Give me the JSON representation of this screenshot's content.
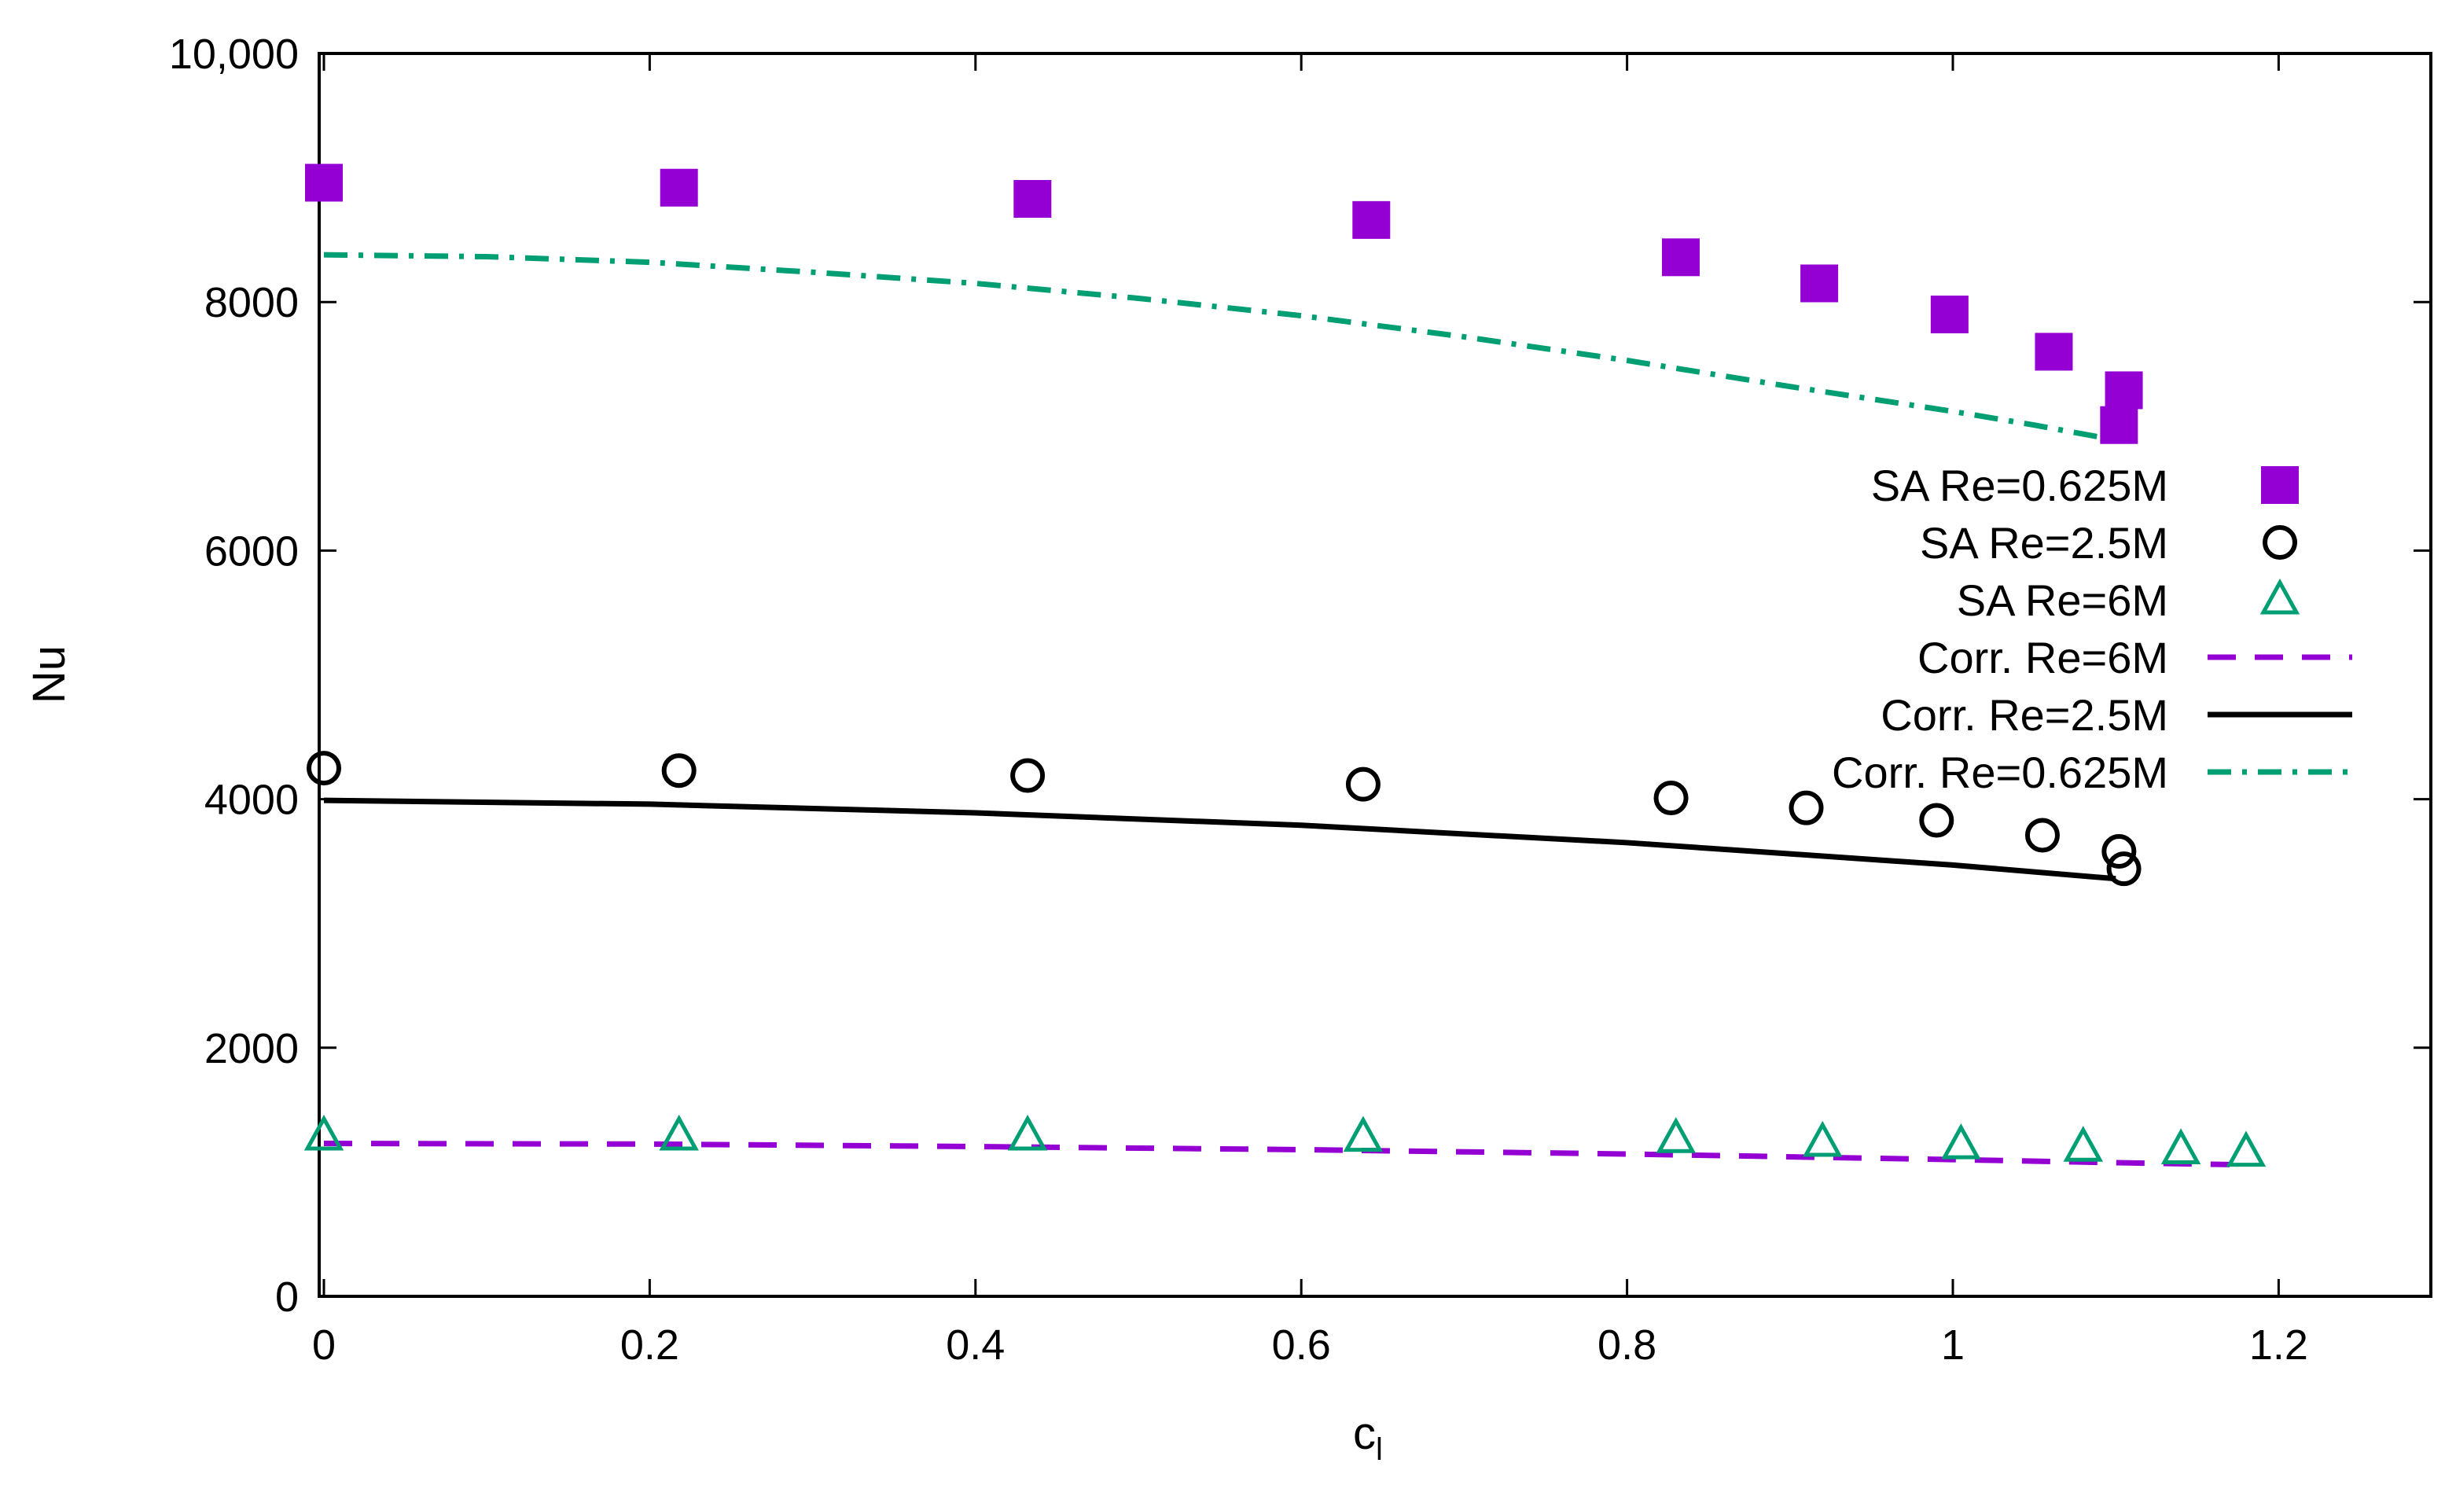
{
  "chart_data": {
    "type": "scatter",
    "title": "",
    "xlabel": "c",
    "xlabel_subscript": "l",
    "ylabel": "Nu",
    "xlim": [
      0,
      1.3
    ],
    "ylim": [
      0,
      10000
    ],
    "xticks": [
      0,
      0.2,
      0.4,
      0.6,
      0.8,
      1,
      1.2
    ],
    "xtick_labels": [
      "0",
      "0.2",
      "0.4",
      "0.6",
      "0.8",
      "1",
      "1.2"
    ],
    "yticks": [
      0,
      2000,
      4000,
      6000,
      8000,
      10000
    ],
    "ytick_labels": [
      "0",
      "2000",
      "4000",
      "6000",
      "8000",
      "10,000"
    ],
    "legend_position": "right",
    "series": [
      {
        "name": "SA Re=0.625M",
        "kind": "points",
        "marker": "filled-square",
        "color": "#9400D3",
        "x": [
          0.0,
          0.218,
          0.435,
          0.643,
          0.833,
          0.918,
          0.998,
          1.062,
          1.105,
          1.102
        ],
        "y": [
          8960,
          8920,
          8830,
          8660,
          8360,
          8150,
          7900,
          7600,
          7290,
          7010
        ]
      },
      {
        "name": "SA Re=2.5M",
        "kind": "points",
        "marker": "open-circle",
        "color": "#000000",
        "x": [
          0.0,
          0.218,
          0.432,
          0.638,
          0.827,
          0.91,
          0.99,
          1.055,
          1.102,
          1.105
        ],
        "y": [
          4250,
          4230,
          4190,
          4120,
          4010,
          3930,
          3830,
          3710,
          3580,
          3440
        ]
      },
      {
        "name": "SA Re=6M",
        "kind": "points",
        "marker": "open-triangle",
        "color": "#009E73",
        "x": [
          0.0,
          0.218,
          0.432,
          0.638,
          0.83,
          0.92,
          1.005,
          1.08,
          1.14,
          1.18
        ],
        "y": [
          1290,
          1290,
          1290,
          1280,
          1270,
          1240,
          1220,
          1200,
          1180,
          1160
        ]
      },
      {
        "name": "Corr. Re=6M",
        "kind": "line",
        "dash": "dashed",
        "color": "#9400D3",
        "x": [
          0.0,
          0.2,
          0.4,
          0.6,
          0.8,
          1.0,
          1.1,
          1.17
        ],
        "y": [
          1230,
          1225,
          1205,
          1180,
          1145,
          1100,
          1075,
          1060
        ]
      },
      {
        "name": "Corr. Re=2.5M",
        "kind": "line",
        "dash": "solid",
        "color": "#000000",
        "x": [
          0.0,
          0.2,
          0.4,
          0.6,
          0.8,
          0.9,
          1.0,
          1.1
        ],
        "y": [
          3990,
          3960,
          3890,
          3790,
          3650,
          3560,
          3470,
          3360
        ]
      },
      {
        "name": "Corr. Re=0.625M",
        "kind": "line",
        "dash": "dash-dot",
        "color": "#009E73",
        "x": [
          0.0,
          0.1,
          0.2,
          0.3,
          0.4,
          0.5,
          0.6,
          0.7,
          0.8,
          0.9,
          1.0,
          1.05,
          1.1
        ],
        "y": [
          8380,
          8365,
          8320,
          8240,
          8150,
          8030,
          7890,
          7720,
          7530,
          7320,
          7120,
          7010,
          6890
        ]
      }
    ]
  }
}
